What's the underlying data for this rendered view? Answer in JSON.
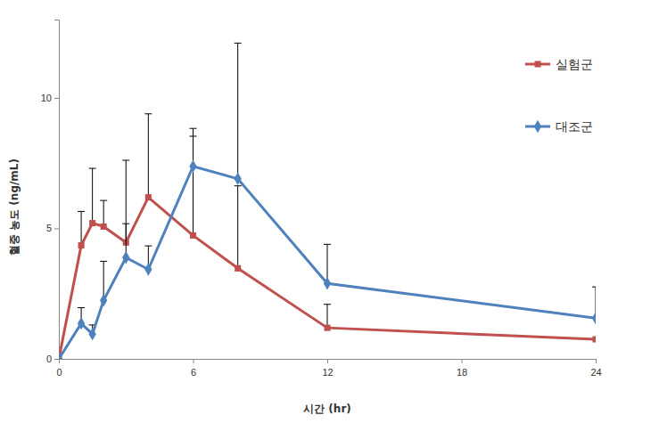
{
  "chart_data": {
    "type": "line",
    "x_label": "시간 (hr)",
    "y_label": "혈중 농도 (ng/mL)",
    "x": [
      0,
      1,
      1.5,
      2,
      3,
      4,
      6,
      8,
      12,
      24
    ],
    "xlim": [
      0,
      24
    ],
    "xticks": [
      0,
      6,
      12,
      18,
      24
    ],
    "ylim": [
      0,
      13
    ],
    "yticks": [
      0,
      5,
      10
    ],
    "grid": false,
    "legend": "upper right",
    "series": [
      {
        "name": "실험군",
        "color": "#C0504D",
        "marker": "square",
        "values": [
          0,
          4.35,
          5.2,
          5.07,
          4.46,
          6.19,
          4.73,
          3.47,
          1.19,
          0.75
        ],
        "errors": [
          0,
          1.3,
          2.1,
          1.0,
          3.15,
          3.2,
          3.8,
          3.16,
          0.9,
          0
        ]
      },
      {
        "name": "대조군",
        "color": "#4F81BD",
        "marker": "diamond",
        "values": [
          0,
          1.36,
          0.95,
          2.24,
          3.88,
          3.43,
          7.38,
          6.9,
          2.89,
          1.56
        ],
        "errors": [
          0,
          0.6,
          0.35,
          1.5,
          1.3,
          0.9,
          1.45,
          5.2,
          1.5,
          1.2
        ]
      }
    ]
  }
}
